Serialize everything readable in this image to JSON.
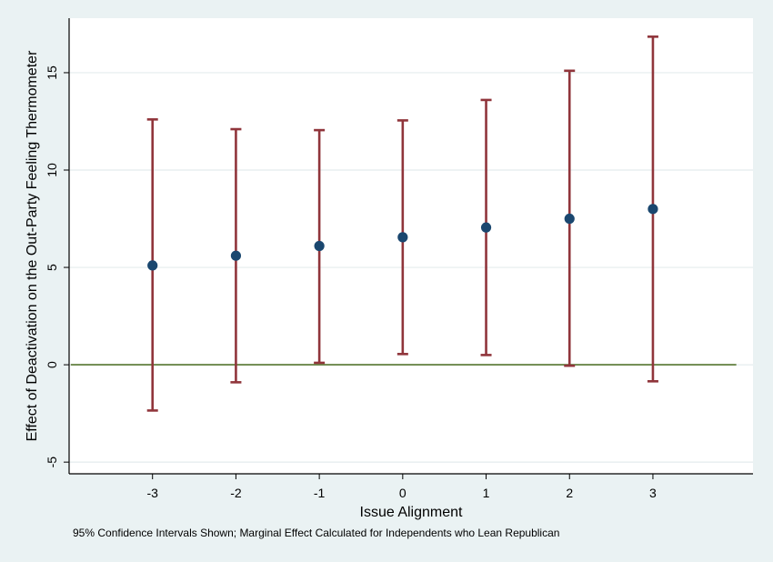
{
  "chart_data": {
    "type": "scatter",
    "title": "",
    "xlabel": "Issue Alignment",
    "ylabel": "Effect of Deactivation on the Out-Party Feeling Thermometer",
    "note": "95% Confidence Intervals Shown; Marginal Effect Calculated for Independents who Lean Republican",
    "x_ticks": [
      "-3",
      "-2",
      "-1",
      "0",
      "1",
      "2",
      "3"
    ],
    "y_ticks": [
      "-5",
      "0",
      "5",
      "10",
      "15"
    ],
    "xlim": [
      -4,
      4.2
    ],
    "ylim": [
      -5.6,
      17.8
    ],
    "grid": "horizontal",
    "reference_line": 0,
    "x": [
      -3,
      -2,
      -1,
      0,
      1,
      2,
      3
    ],
    "estimate": [
      5.1,
      5.6,
      6.1,
      6.55,
      7.05,
      7.5,
      8.0
    ],
    "ci_lower": [
      -2.35,
      -0.9,
      0.1,
      0.55,
      0.5,
      -0.05,
      -0.85
    ],
    "ci_upper": [
      12.6,
      12.1,
      12.05,
      12.55,
      13.6,
      15.1,
      16.85
    ],
    "colors": {
      "background": "#eaf2f3",
      "plot_area": "#ffffff",
      "grid": "#e4ecee",
      "point": "#1a476f",
      "error_bar": "#90353b",
      "reference_line": "#55752f"
    }
  }
}
